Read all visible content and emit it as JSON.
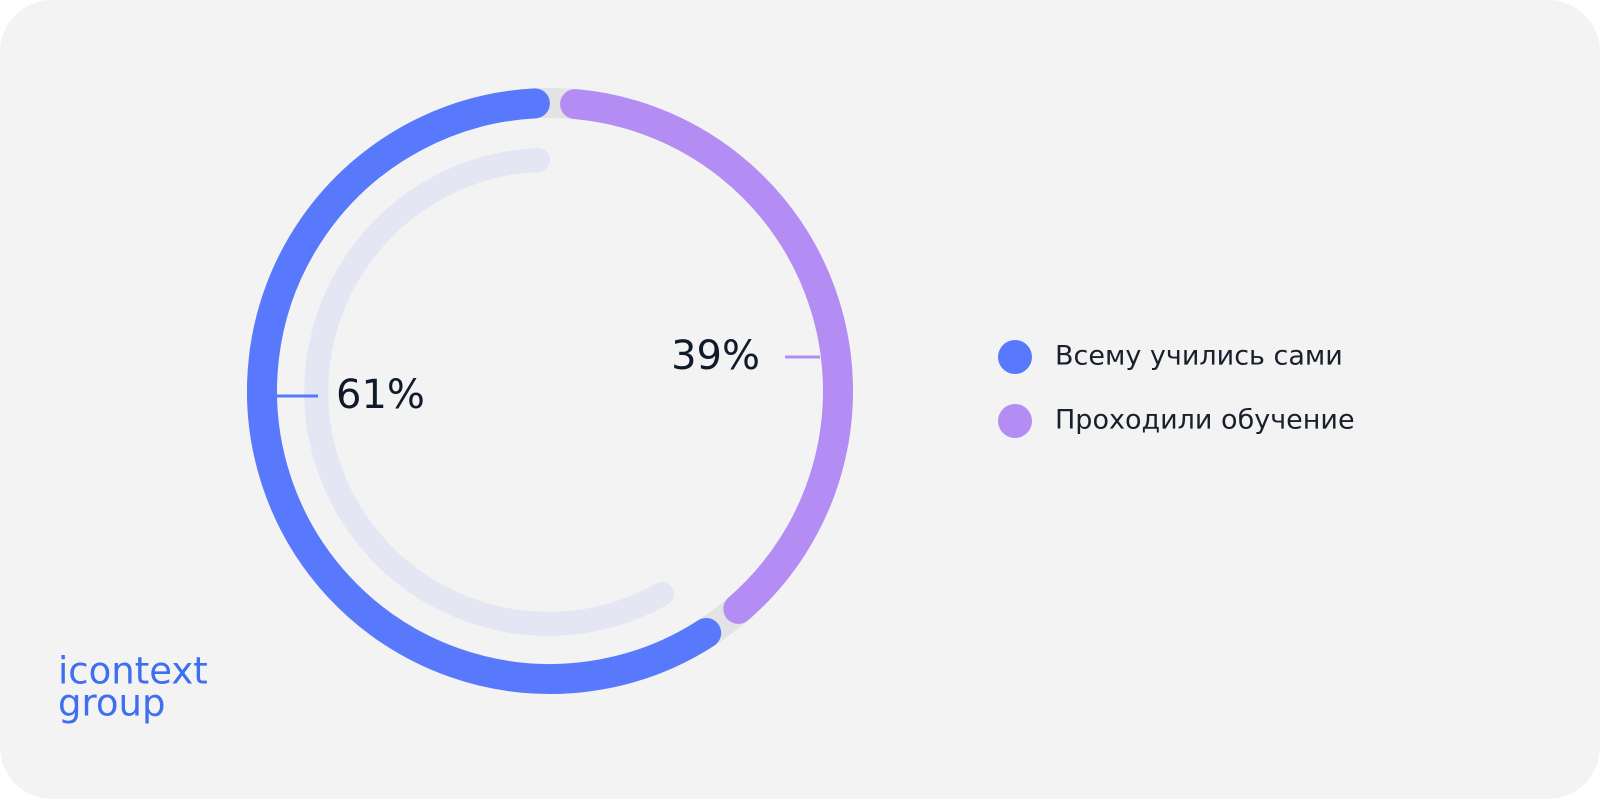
{
  "chart_data": {
    "type": "donut",
    "categories": [
      "Всему учились сами",
      "Проходили обучение"
    ],
    "values": [
      61,
      39
    ],
    "value_labels": [
      "61%",
      "39%"
    ],
    "colors": [
      "#5879fb",
      "#b38cf4"
    ]
  },
  "logo": [
    "icontext",
    "group"
  ]
}
